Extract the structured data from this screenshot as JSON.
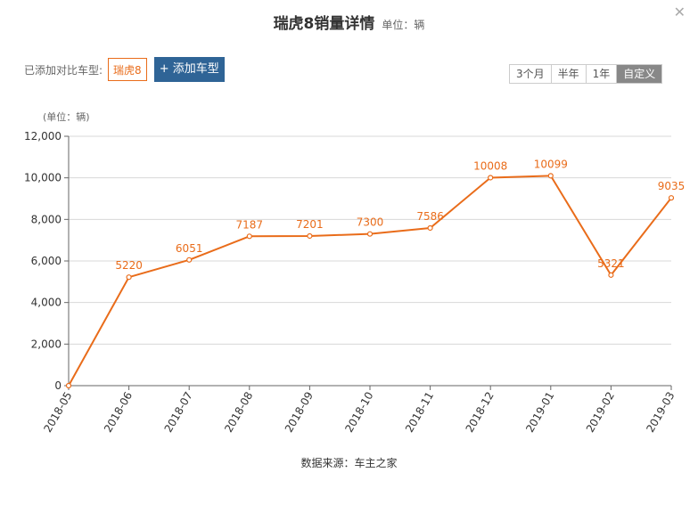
{
  "header": {
    "title": "瑞虎8销量详情",
    "unit": "单位：辆",
    "close_icon": "close-icon"
  },
  "compare": {
    "label": "已添加对比车型:",
    "model": "瑞虎8",
    "add_button": "+ 添加车型"
  },
  "range": {
    "options": [
      "3个月",
      "半年",
      "1年",
      "自定义"
    ],
    "selected": "自定义"
  },
  "axis_unit": "(单位：辆)",
  "source": "数据来源：车主之家",
  "colors": {
    "line": "#e96c1a",
    "accent_button": "#2f6496",
    "grid": "#d8d8d8"
  },
  "chart_data": {
    "type": "line",
    "title": "瑞虎8销量详情",
    "ylabel": "(单位：辆)",
    "categories": [
      "2018-05",
      "2018-06",
      "2018-07",
      "2018-08",
      "2018-09",
      "2018-10",
      "2018-11",
      "2018-12",
      "2019-01",
      "2019-02",
      "2019-03"
    ],
    "series": [
      {
        "values": [
          0,
          5220,
          6051,
          7187,
          7201,
          7300,
          7586,
          10008,
          10099,
          5321,
          9035
        ],
        "labels": [
          "",
          "5220",
          "6051",
          "7187",
          "7201",
          "7300",
          "7586",
          "10008",
          "10099",
          "5321",
          "9035"
        ]
      }
    ],
    "ylim": [
      0,
      12000
    ],
    "yticks": [
      "0",
      "2,000",
      "4,000",
      "6,000",
      "8,000",
      "10,000",
      "12,000"
    ],
    "grid": true
  }
}
